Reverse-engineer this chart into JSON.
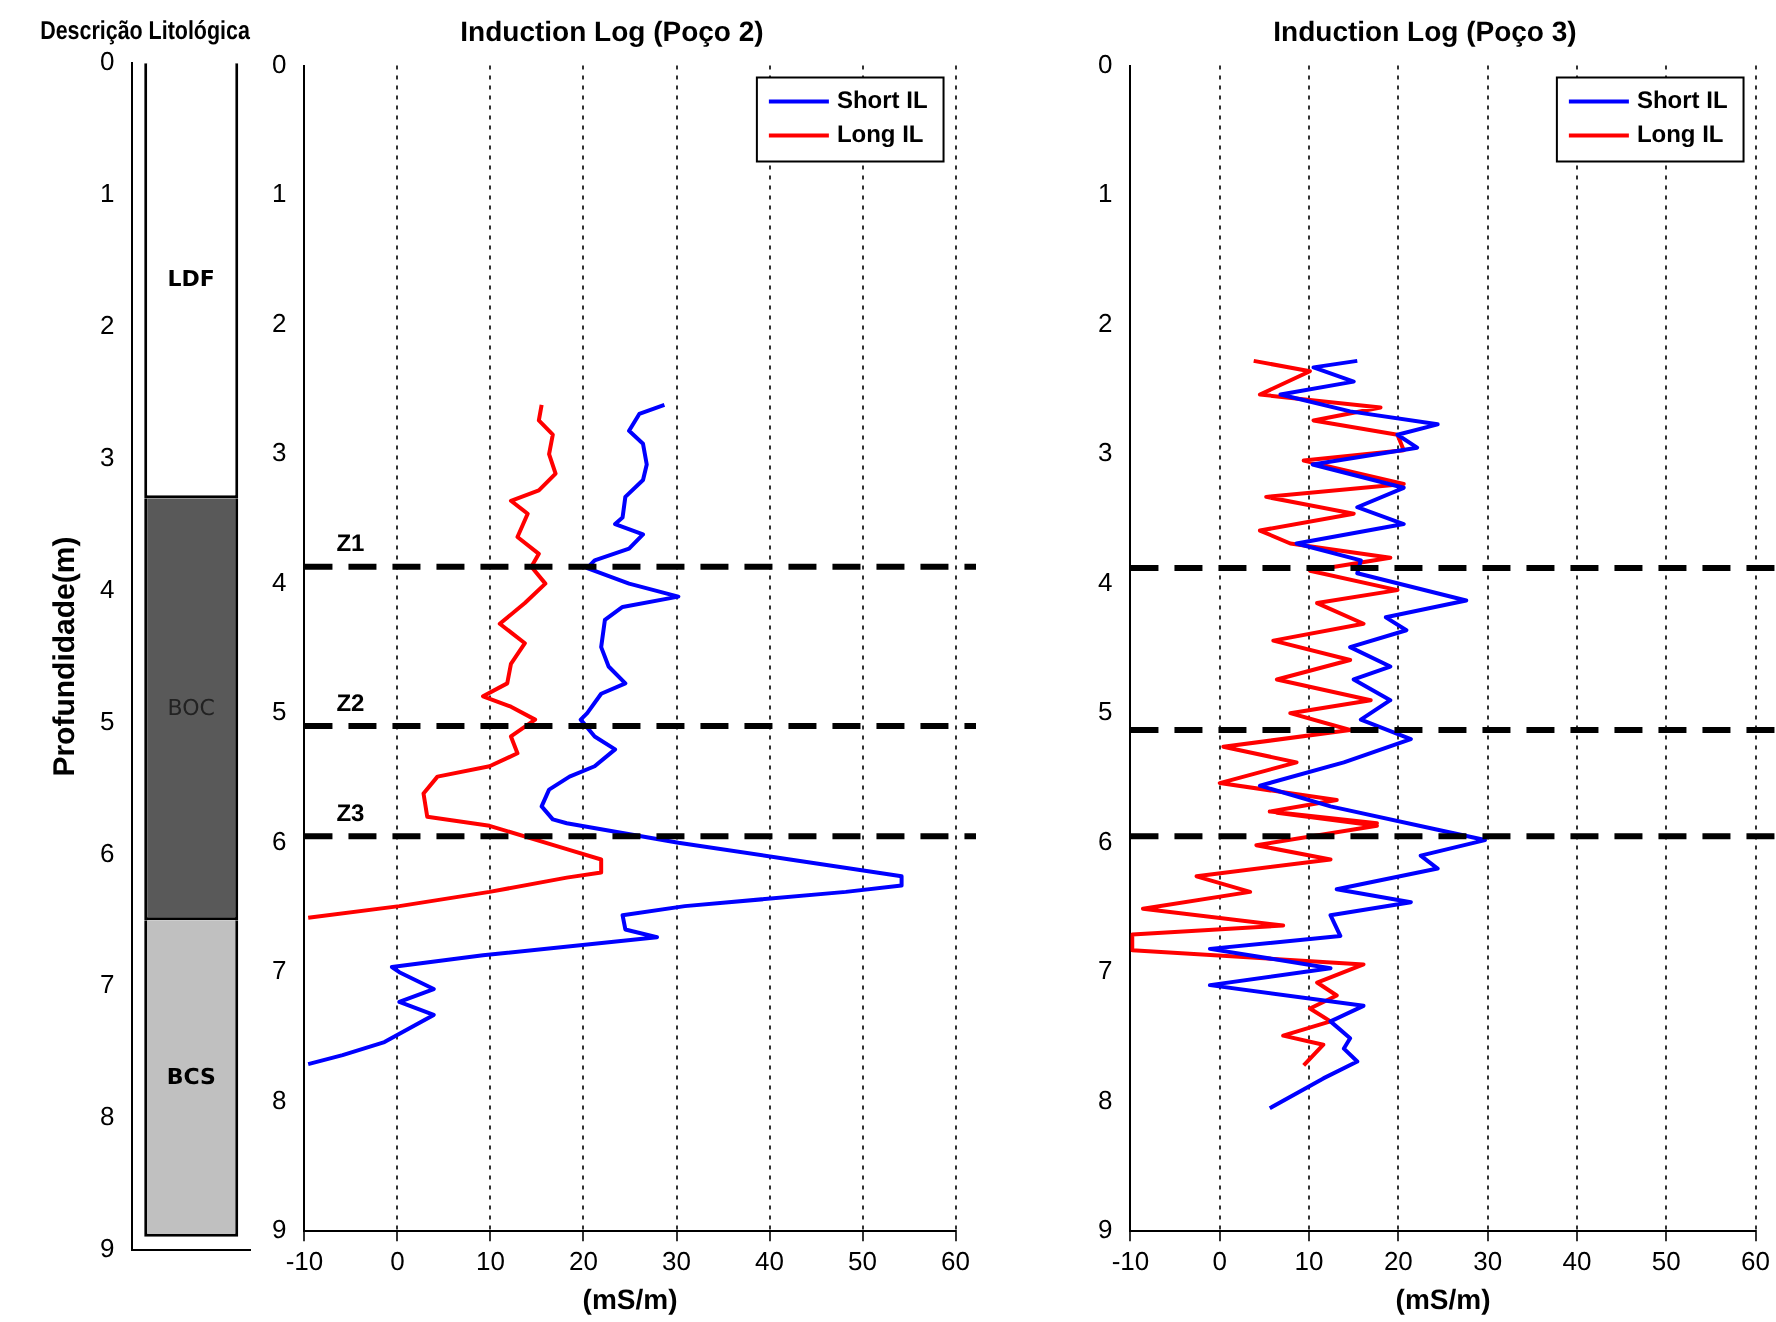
{
  "chart_data": [
    {
      "type": "bar",
      "title": "Descrição Litológica",
      "ylabel": "Profundidade(m)",
      "categories": [
        null
      ],
      "stacked": true,
      "ylim": [
        9,
        0
      ],
      "yticks": [
        0,
        1,
        2,
        3,
        4,
        5,
        6,
        7,
        8,
        9
      ],
      "tick_labels": "y",
      "grid": false,
      "legend": false,
      "series": [
        {
          "name": "LDF",
          "color": "#ffffff",
          "values": [
            3.3
          ]
        },
        {
          "name": "BOC",
          "color": "#595959",
          "values": [
            3.2
          ]
        },
        {
          "name": "BCS",
          "color": "#c0c0c0",
          "values": [
            2.4
          ]
        }
      ]
    },
    {
      "type": "line",
      "title": "Induction Log (Poço 2)",
      "xlabel": "(mS/m)",
      "xlim": [
        -10,
        60
      ],
      "xticks": [
        -10,
        0,
        10,
        20,
        30,
        40,
        50,
        60
      ],
      "ylim": [
        9,
        0
      ],
      "yticks": [
        0,
        1,
        2,
        3,
        4,
        5,
        6,
        7,
        8,
        9
      ],
      "grid": "x",
      "legend": "top right",
      "marker": "none",
      "series": [
        {
          "name": "Short IL",
          "color": "#0000ff",
          "x": [
            28.7,
            26.0,
            24.9,
            26.4,
            26.8,
            26.4,
            24.5,
            24.2,
            23.4,
            26.4,
            24.9,
            21.2,
            20.4,
            24.9,
            30.2,
            24.2,
            22.3,
            21.9,
            22.7,
            24.5,
            21.9,
            20.4,
            19.7,
            21.2,
            23.4,
            21.2,
            18.5,
            16.3,
            15.5,
            16.7,
            18.2,
            30.2,
            42.2,
            54.2,
            54.2,
            48.2,
            30.9,
            24.2,
            24.5,
            27.9,
            9.2,
            -0.6,
            0.2,
            3.9,
            0.2,
            3.9,
            -1.4,
            -5.9,
            -9.6
          ],
          "values": [
            2.62,
            2.69,
            2.82,
            2.92,
            3.08,
            3.2,
            3.33,
            3.49,
            3.54,
            3.62,
            3.73,
            3.82,
            3.88,
            4.0,
            4.1,
            4.18,
            4.28,
            4.49,
            4.64,
            4.77,
            4.85,
            5.0,
            5.05,
            5.18,
            5.28,
            5.41,
            5.49,
            5.59,
            5.72,
            5.82,
            5.85,
            6.0,
            6.13,
            6.26,
            6.33,
            6.38,
            6.49,
            6.56,
            6.67,
            6.73,
            6.87,
            6.96,
            7.0,
            7.13,
            7.23,
            7.33,
            7.54,
            7.64,
            7.71
          ]
        },
        {
          "name": "Long IL",
          "color": "#ff0000",
          "x": [
            15.5,
            15.2,
            16.7,
            16.3,
            17.0,
            15.2,
            12.2,
            14.0,
            12.9,
            15.2,
            14.4,
            15.9,
            13.7,
            11.0,
            13.7,
            12.2,
            11.8,
            9.2,
            12.2,
            14.8,
            12.2,
            12.9,
            9.9,
            4.3,
            2.8,
            3.2,
            9.9,
            18.2,
            21.9,
            21.9,
            18.2,
            9.9,
            0.2,
            -9.6
          ],
          "values": [
            2.62,
            2.74,
            2.85,
            3.0,
            3.15,
            3.28,
            3.36,
            3.46,
            3.64,
            3.77,
            3.87,
            4.0,
            4.15,
            4.31,
            4.46,
            4.62,
            4.77,
            4.87,
            4.95,
            5.05,
            5.18,
            5.31,
            5.41,
            5.49,
            5.62,
            5.8,
            5.87,
            6.05,
            6.13,
            6.23,
            6.27,
            6.38,
            6.49,
            6.58
          ]
        }
      ],
      "ref_lines": [
        {
          "axis": "y",
          "value": 3.87,
          "label": "Z1",
          "color": "#000000",
          "line_style": "dashed"
        },
        {
          "axis": "y",
          "value": 5.1,
          "label": "Z2",
          "color": "#000000",
          "line_style": "dashed"
        },
        {
          "axis": "y",
          "value": 5.95,
          "label": "Z3",
          "color": "#000000",
          "line_style": "dashed"
        }
      ]
    },
    {
      "type": "line",
      "title": "Induction Log (Poço 3)",
      "xlabel": "(mS/m)",
      "xlim": [
        -10,
        60
      ],
      "xticks": [
        -10,
        0,
        10,
        20,
        30,
        40,
        50,
        60
      ],
      "ylim": [
        9,
        0
      ],
      "yticks": [
        0,
        1,
        2,
        3,
        4,
        5,
        6,
        7,
        8,
        9
      ],
      "grid": "x",
      "legend": "top right",
      "marker": "none",
      "series": [
        {
          "name": "Short IL",
          "color": "#0000ff",
          "x": [
            15.4,
            10.5,
            15.0,
            6.8,
            14.6,
            24.4,
            19.9,
            22.1,
            10.4,
            20.6,
            15.4,
            20.6,
            8.6,
            15.8,
            15.4,
            27.6,
            18.6,
            20.9,
            14.6,
            19.1,
            15.0,
            19.1,
            15.8,
            21.4,
            13.9,
            4.5,
            12.4,
            24.4,
            29.7,
            22.5,
            24.4,
            13.1,
            21.4,
            12.4,
            13.5,
            -1.1,
            12.4,
            -1.1,
            16.1,
            12.4,
            14.6,
            13.9,
            15.4,
            11.6,
            5.6
          ],
          "values": [
            2.28,
            2.33,
            2.44,
            2.54,
            2.67,
            2.77,
            2.85,
            2.95,
            3.08,
            3.26,
            3.41,
            3.54,
            3.69,
            3.82,
            3.92,
            4.13,
            4.26,
            4.36,
            4.49,
            4.64,
            4.74,
            4.9,
            5.05,
            5.2,
            5.38,
            5.56,
            5.72,
            5.9,
            5.98,
            6.1,
            6.2,
            6.36,
            6.46,
            6.56,
            6.72,
            6.82,
            6.97,
            7.1,
            7.26,
            7.38,
            7.51,
            7.59,
            7.69,
            7.82,
            8.05
          ]
        },
        {
          "name": "Long IL",
          "color": "#ff0000",
          "x": [
            3.8,
            10.1,
            4.5,
            18.0,
            10.5,
            19.9,
            20.6,
            9.4,
            20.6,
            5.2,
            15.0,
            4.5,
            7.9,
            19.1,
            10.1,
            19.9,
            10.9,
            16.1,
            6.0,
            14.6,
            6.4,
            16.9,
            7.9,
            14.6,
            0.4,
            8.6,
            0.0,
            13.1,
            5.6,
            17.6,
            6.4,
            17.6,
            4.1,
            12.4,
            -2.6,
            3.4,
            -8.6,
            7.1,
            -9.8,
            -9.8,
            16.1,
            10.9,
            13.1,
            10.1,
            12.4,
            7.1,
            11.6,
            9.4
          ],
          "values": [
            2.28,
            2.36,
            2.54,
            2.64,
            2.74,
            2.85,
            2.97,
            3.05,
            3.23,
            3.33,
            3.46,
            3.59,
            3.69,
            3.8,
            3.9,
            4.05,
            4.15,
            4.31,
            4.44,
            4.59,
            4.74,
            4.9,
            5.0,
            5.13,
            5.26,
            5.38,
            5.54,
            5.67,
            5.76,
            5.85,
            5.77,
            5.87,
            6.02,
            6.13,
            6.26,
            6.38,
            6.51,
            6.64,
            6.71,
            6.83,
            6.94,
            7.08,
            7.18,
            7.28,
            7.38,
            7.49,
            7.56,
            7.72
          ]
        }
      ],
      "ref_lines": [
        {
          "axis": "y",
          "value": 3.88,
          "color": "#000000",
          "line_style": "dashed"
        },
        {
          "axis": "y",
          "value": 5.13,
          "color": "#000000",
          "line_style": "dashed"
        },
        {
          "axis": "y",
          "value": 5.95,
          "color": "#000000",
          "line_style": "dashed"
        }
      ]
    }
  ]
}
